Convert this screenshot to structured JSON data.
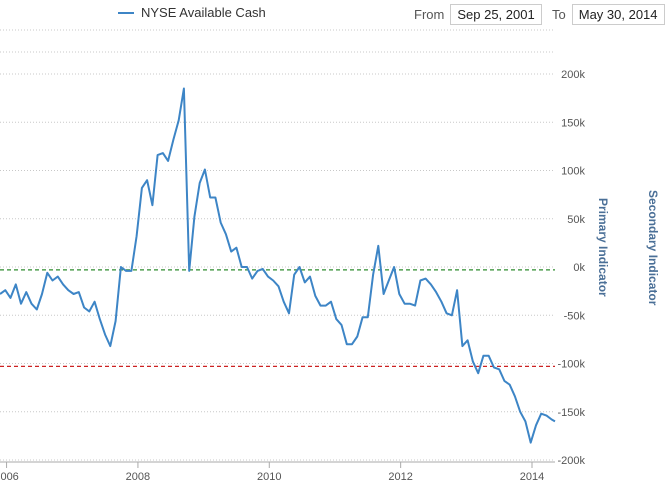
{
  "legend": {
    "series_name": "NYSE Available Cash"
  },
  "range_selector": {
    "from_label": "From",
    "from_value": "Sep 25, 2001",
    "to_label": "To",
    "to_value": "May 30, 2014"
  },
  "colors": {
    "series": "#3d85c6",
    "green_line": "#2e8b2e",
    "red_line": "#cc2222",
    "grid": "#c8c8c8"
  },
  "chart_data": {
    "type": "line",
    "xlabel": "",
    "ylabel_primary": "Primary Indicator",
    "ylabel_secondary": "Secondary Indicator",
    "xlim": [
      2005.9,
      2014.35
    ],
    "ylim": [
      -200000,
      200000
    ],
    "x_ticks": [
      2006,
      2008,
      2010,
      2012,
      2014
    ],
    "x_tick_labels": [
      "2006",
      "2008",
      "2010",
      "2012",
      "2014"
    ],
    "y_ticks": [
      200000,
      150000,
      100000,
      50000,
      0,
      -50000,
      -100000,
      -150000,
      -200000
    ],
    "y_tick_labels": [
      "200k",
      "150k",
      "100k",
      "50k",
      "0k",
      "-50k",
      "-100k",
      "-150k",
      "-200k"
    ],
    "grid": true,
    "reference_lines": [
      {
        "y": -3000,
        "color": "green"
      },
      {
        "y": -103000,
        "color": "red"
      }
    ],
    "series": [
      {
        "name": "NYSE Available Cash",
        "x": [
          2005.9,
          2005.98,
          2006.06,
          2006.14,
          2006.22,
          2006.3,
          2006.38,
          2006.46,
          2006.54,
          2006.62,
          2006.7,
          2006.78,
          2006.86,
          2006.94,
          2007.02,
          2007.1,
          2007.18,
          2007.26,
          2007.34,
          2007.42,
          2007.5,
          2007.58,
          2007.66,
          2007.74,
          2007.82,
          2007.9,
          2007.98,
          2008.06,
          2008.14,
          2008.22,
          2008.3,
          2008.38,
          2008.46,
          2008.54,
          2008.62,
          2008.7,
          2008.78,
          2008.86,
          2008.94,
          2009.02,
          2009.1,
          2009.18,
          2009.26,
          2009.34,
          2009.42,
          2009.5,
          2009.58,
          2009.66,
          2009.74,
          2009.82,
          2009.9,
          2009.98,
          2010.06,
          2010.14,
          2010.22,
          2010.3,
          2010.38,
          2010.46,
          2010.54,
          2010.62,
          2010.7,
          2010.78,
          2010.86,
          2010.94,
          2011.02,
          2011.1,
          2011.18,
          2011.26,
          2011.34,
          2011.42,
          2011.5,
          2011.58,
          2011.66,
          2011.74,
          2011.82,
          2011.9,
          2011.98,
          2012.06,
          2012.14,
          2012.22,
          2012.3,
          2012.38,
          2012.46,
          2012.54,
          2012.62,
          2012.7,
          2012.78,
          2012.86,
          2012.94,
          2013.02,
          2013.1,
          2013.18,
          2013.26,
          2013.34,
          2013.42,
          2013.5,
          2013.58,
          2013.66,
          2013.74,
          2013.82,
          2013.9,
          2013.98,
          2014.06,
          2014.14,
          2014.22,
          2014.3,
          2014.35
        ],
        "values": [
          -28000,
          -24000,
          -32000,
          -18000,
          -38000,
          -26000,
          -38000,
          -44000,
          -28000,
          -6000,
          -14000,
          -10000,
          -18000,
          -24000,
          -28000,
          -26000,
          -42000,
          -46000,
          -36000,
          -54000,
          -70000,
          -82000,
          -56000,
          0,
          -4000,
          -4000,
          32000,
          82000,
          90000,
          64000,
          116000,
          118000,
          110000,
          132000,
          152000,
          185000,
          -4000,
          52000,
          87000,
          101000,
          72000,
          72000,
          46000,
          34000,
          16000,
          20000,
          0,
          0,
          -12000,
          -4000,
          -2000,
          -10000,
          -14000,
          -20000,
          -36000,
          -48000,
          -8000,
          0,
          -16000,
          -10000,
          -30000,
          -40000,
          -40000,
          -36000,
          -54000,
          -60000,
          -80000,
          -80000,
          -72000,
          -52000,
          -52000,
          -8000,
          22000,
          -28000,
          -14000,
          0,
          -28000,
          -38000,
          -38000,
          -40000,
          -14000,
          -12000,
          -18000,
          -26000,
          -36000,
          -48000,
          -50000,
          -24000,
          -82000,
          -76000,
          -98000,
          -110000,
          -92000,
          -92000,
          -104000,
          -106000,
          -118000,
          -122000,
          -134000,
          -150000,
          -160000,
          -182000,
          -164000,
          -152000,
          -154000,
          -158000,
          -160000
        ]
      }
    ]
  }
}
